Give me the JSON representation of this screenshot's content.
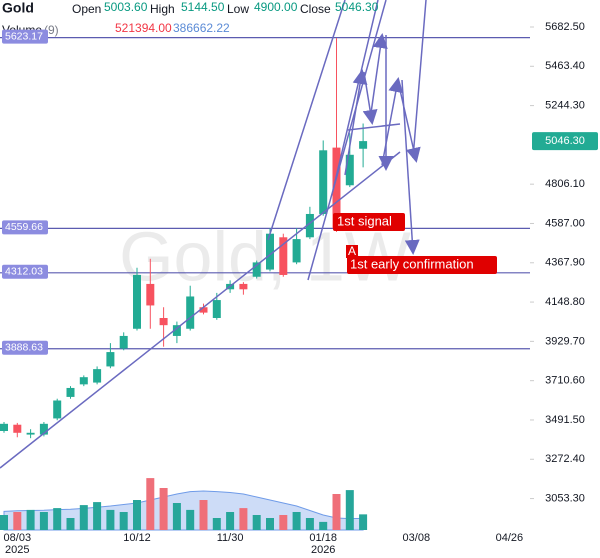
{
  "chart_data": {
    "type": "candlestick",
    "symbol": "Gold",
    "watermark": "Gold, 1W",
    "legend": {
      "open_label": "Open",
      "open": "5003.60",
      "high_label": "High",
      "high": "5144.50",
      "low_label": "Low",
      "low": "4900.00",
      "close_label": "Close",
      "close": "5046.30",
      "volume_label": "Volume",
      "volume_period": "(9)",
      "volume": "521394.00",
      "volume_ma": "386662.22"
    },
    "categories": [
      null,
      "08/03",
      null,
      null,
      null,
      null,
      null,
      null,
      null,
      null,
      "10/12",
      null,
      null,
      null,
      null,
      null,
      null,
      "11/30",
      null,
      null,
      null,
      null,
      null,
      null,
      "01/18",
      null,
      null,
      null,
      null,
      null,
      null,
      "03/08",
      null,
      null,
      null,
      null,
      null,
      null,
      "04/26",
      null,
      null,
      null,
      null,
      null,
      null
    ],
    "year_labels": [
      null,
      "2025",
      null,
      null,
      null,
      null,
      null,
      null,
      null,
      null,
      null,
      null,
      null,
      null,
      null,
      null,
      null,
      null,
      null,
      null,
      null,
      null,
      null,
      null,
      "2026",
      null,
      null,
      null,
      null,
      null,
      null,
      null,
      null,
      null,
      null,
      null,
      null,
      null,
      null,
      null,
      null,
      null,
      null,
      null,
      null
    ],
    "open": [
      3430,
      3465,
      3410,
      3410,
      3500,
      3620,
      3690,
      3700,
      3790,
      3890,
      4000,
      4250,
      4060,
      3960,
      4000,
      4120,
      4060,
      4220,
      4250,
      4290,
      4330,
      4510,
      4370,
      4510,
      4640,
      5010,
      4800,
      5003.6,
      null,
      null,
      null,
      null,
      null,
      null,
      null,
      null,
      null,
      null,
      null,
      null,
      null,
      null,
      null,
      null,
      null
    ],
    "high": [
      3480,
      3475,
      3440,
      3480,
      3610,
      3680,
      3740,
      3790,
      3920,
      3980,
      4340,
      4390,
      4120,
      4040,
      4240,
      4140,
      4200,
      4270,
      4260,
      4380,
      4560,
      4530,
      4560,
      4680,
      5050,
      5620,
      5090,
      5144.5,
      null,
      null,
      null,
      null,
      null,
      null,
      null,
      null,
      null,
      null,
      null,
      null,
      null,
      null,
      null,
      null,
      null
    ],
    "low": [
      3420,
      3395,
      3390,
      3400,
      3490,
      3610,
      3680,
      3690,
      3780,
      3880,
      3990,
      4000,
      3900,
      3920,
      3990,
      4080,
      4050,
      4200,
      4190,
      4280,
      4320,
      4290,
      4360,
      4500,
      4630,
      4540,
      4790,
      4900,
      null,
      null,
      null,
      null,
      null,
      null,
      null,
      null,
      null,
      null,
      null,
      null,
      null,
      null,
      null,
      null,
      null
    ],
    "close": [
      3470,
      3420,
      3420,
      3470,
      3600,
      3670,
      3730,
      3775,
      3870,
      3960,
      4300,
      4130,
      4020,
      4020,
      4180,
      4090,
      4160,
      4250,
      4220,
      4370,
      4530,
      4300,
      4500,
      4640,
      4995,
      4560,
      4970,
      5046.3,
      null,
      null,
      null,
      null,
      null,
      null,
      null,
      null,
      null,
      null,
      null,
      null,
      null,
      null,
      null,
      null,
      null
    ],
    "volume": [
      500000,
      600000,
      670000,
      600000,
      730000,
      400000,
      830000,
      930000,
      670000,
      600000,
      1000000,
      1730000,
      1400000,
      900000,
      670000,
      1000000,
      400000,
      600000,
      730000,
      500000,
      400000,
      500000,
      600000,
      400000,
      270000,
      1200000,
      1330000,
      521394,
      null,
      null,
      null,
      null,
      null,
      null,
      null,
      null,
      null,
      null,
      null,
      null,
      null,
      null,
      null,
      null,
      null
    ],
    "volume_ma": [
      620000,
      640000,
      650000,
      660000,
      680000,
      690000,
      720000,
      760000,
      800000,
      850000,
      900000,
      1000000,
      1100000,
      1200000,
      1280000,
      1300000,
      1280000,
      1250000,
      1200000,
      1100000,
      1000000,
      900000,
      800000,
      650000,
      500000,
      400000,
      380000,
      386662.22,
      null,
      null,
      null,
      null,
      null,
      null,
      null,
      null,
      null,
      null,
      null,
      null,
      null,
      null,
      null,
      null,
      null
    ],
    "up_color": "#22ab94",
    "down_color": "#f7525f",
    "volume_up_color": "#26a69a",
    "volume_down_color": "#ef6f79",
    "volume_ma_color": "#6f9be8",
    "ylim": [
      2878,
      5833
    ],
    "vlim": [
      0,
      1800000
    ],
    "yticks": [
      {
        "value": 5682.5,
        "label": "5682.50"
      },
      {
        "value": 5463.4,
        "label": "5463.40"
      },
      {
        "value": 5244.3,
        "label": "5244.30"
      },
      {
        "value": 4806.1,
        "label": "4806.10"
      },
      {
        "value": 4587,
        "label": "4587.00"
      },
      {
        "value": 4367.9,
        "label": "4367.90"
      },
      {
        "value": 4148.8,
        "label": "4148.80"
      },
      {
        "value": 3929.7,
        "label": "3929.70"
      },
      {
        "value": 3710.6,
        "label": "3710.60"
      },
      {
        "value": 3491.5,
        "label": "3491.50"
      },
      {
        "value": 3272.4,
        "label": "3272.40"
      },
      {
        "value": 3053.3,
        "label": "3053.30"
      }
    ],
    "last_price": {
      "value": 5046.3,
      "label": "5046.30"
    },
    "hlines": [
      5623.17,
      4559.66,
      4312.03,
      3888.63
    ],
    "hline_color": "#5b5bb0",
    "annotations": [
      "1st signal",
      "A",
      "1st early confirmation"
    ]
  }
}
